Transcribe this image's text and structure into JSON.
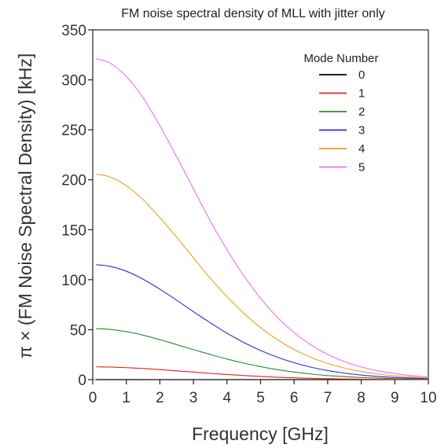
{
  "chart_data": {
    "type": "line",
    "title": "FM noise spectral density of MLL with jitter only",
    "xlabel": "Frequency [GHz]",
    "ylabel": "π × (FM Noise Spectral Density) [kHz]",
    "xlim": [
      0,
      10
    ],
    "ylim": [
      0,
      350
    ],
    "xticks": [
      0,
      1,
      2,
      3,
      4,
      5,
      6,
      7,
      8,
      9,
      10
    ],
    "yticks": [
      0,
      50,
      100,
      150,
      200,
      250,
      300,
      350
    ],
    "x_points": [
      0.1,
      0.5,
      1,
      1.5,
      2,
      2.5,
      3,
      3.5,
      4,
      4.5,
      5,
      5.5,
      6,
      6.5,
      7,
      7.5,
      8,
      8.5,
      9,
      9.5,
      10
    ],
    "legend": {
      "title": "Mode Number",
      "position": "top-right"
    },
    "grid": false,
    "series": [
      {
        "name": "0",
        "color": "#000000",
        "values": [
          0,
          0,
          0,
          0,
          0,
          0,
          0,
          0,
          0,
          0,
          0,
          0,
          0,
          0,
          0,
          0,
          0,
          0,
          0,
          0,
          0
        ]
      },
      {
        "name": "1",
        "color": "#e8211b",
        "values": [
          12.8,
          12.6,
          12.0,
          11.1,
          10.0,
          8.8,
          7.6,
          6.3,
          5.2,
          4.1,
          3.2,
          2.4,
          1.8,
          1.3,
          0.9,
          0.62,
          0.42,
          0.28,
          0.18,
          0.12,
          0.08
        ]
      },
      {
        "name": "2",
        "color": "#2c8a2c",
        "values": [
          51.0,
          50.3,
          48.0,
          44.5,
          40.0,
          35.0,
          30.0,
          25.2,
          20.6,
          16.5,
          13.0,
          10.0,
          7.6,
          5.6,
          4.1,
          3.0,
          2.1,
          1.5,
          1.0,
          0.7,
          0.5
        ]
      },
      {
        "name": "3",
        "color": "#2b2be0",
        "values": [
          115.0,
          113.5,
          108.5,
          100.5,
          90.5,
          79.5,
          68.0,
          57.0,
          46.5,
          37.2,
          29.2,
          22.4,
          16.9,
          12.5,
          9.1,
          6.5,
          4.6,
          3.2,
          2.2,
          1.5,
          1.0
        ]
      },
      {
        "name": "4",
        "color": "#f59a1e",
        "values": [
          205.5,
          203.0,
          194.0,
          180.0,
          162.0,
          142.5,
          122.0,
          101.5,
          83.0,
          66.5,
          52.0,
          40.0,
          30.2,
          22.3,
          16.2,
          11.6,
          8.1,
          5.6,
          3.8,
          2.6,
          1.7
        ]
      },
      {
        "name": "5",
        "color": "#ef6ef0",
        "values": [
          321.0,
          317.0,
          303.5,
          282.0,
          254.0,
          223.0,
          191.0,
          159.0,
          130.0,
          104.0,
          81.5,
          62.5,
          47.0,
          34.8,
          25.3,
          18.1,
          12.7,
          8.8,
          6.0,
          4.0,
          2.7
        ]
      }
    ]
  }
}
